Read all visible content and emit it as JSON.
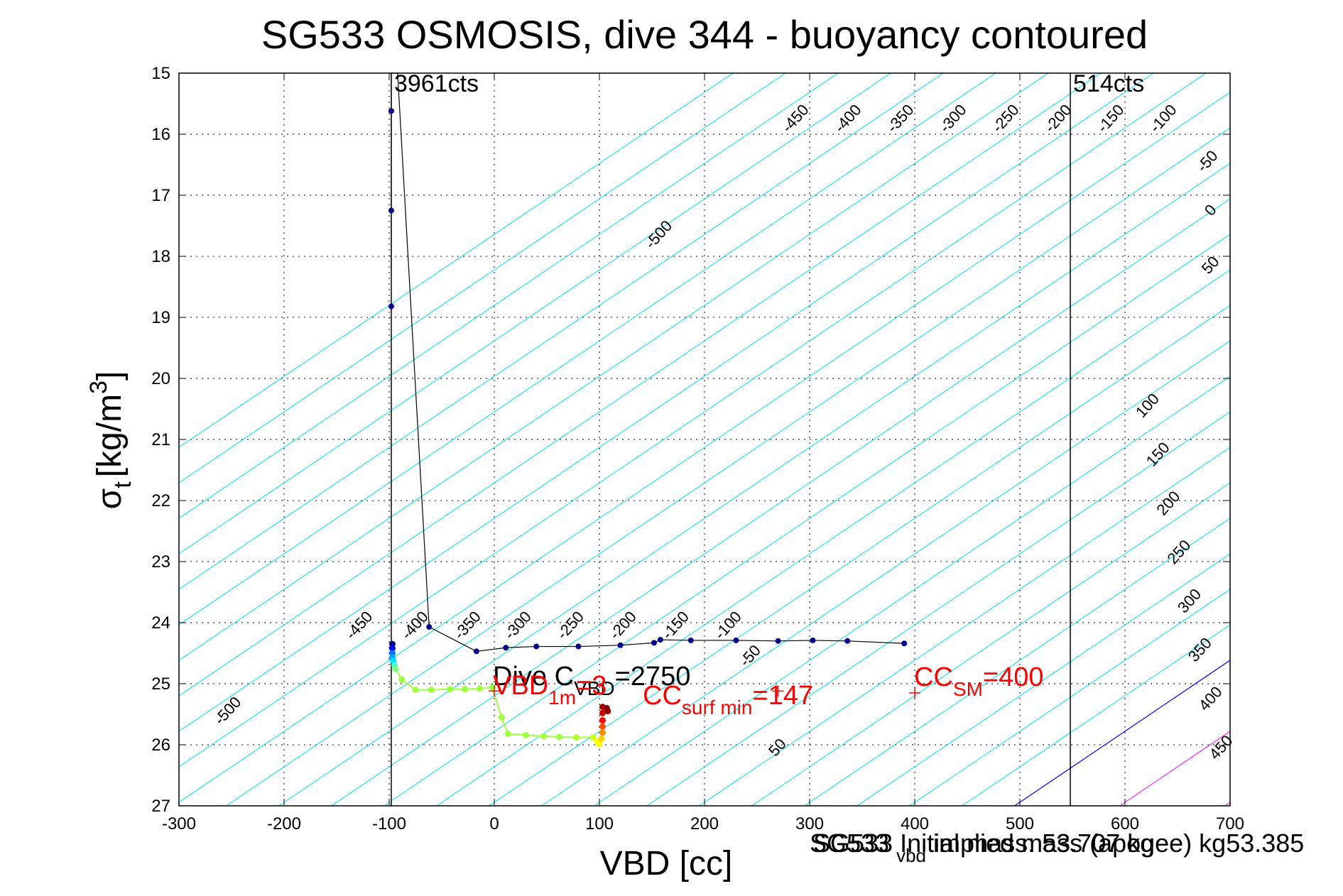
{
  "chart_data": {
    "type": "scatter",
    "title": "SG533 OSMOSIS, dive 344 - buoyancy contoured",
    "xlabel": "VBD [cc]",
    "ylabel": "σ_t [kg/m^3]",
    "ylabel_main": "σ",
    "ylabel_sub": "t",
    "ylabel_unit": "[kg/m",
    "ylabel_sup": "3",
    "ylabel_close": "]",
    "xlim": [
      -300,
      700
    ],
    "ylim": [
      15,
      27
    ],
    "y_reversed": true,
    "grid": true,
    "xticks": [
      -300,
      -200,
      -100,
      0,
      100,
      200,
      300,
      400,
      500,
      600,
      700
    ],
    "yticks": [
      15,
      16,
      17,
      18,
      19,
      20,
      21,
      22,
      23,
      24,
      25,
      26,
      27
    ],
    "vlines": [
      {
        "x": -98,
        "label": "3961cts",
        "color": "#000000"
      },
      {
        "x": 548,
        "label": "514cts",
        "color": "#000000"
      }
    ],
    "contours": {
      "slope_cc_per_sigma": 86,
      "zero_x_at_sigma_27": 495,
      "levels_cyan": [
        -1300,
        -1250,
        -1200,
        -1150,
        -1100,
        -1050,
        -1000,
        -950,
        -900,
        -850,
        -800,
        -750,
        -700,
        -650,
        -600,
        -550,
        -500,
        -450,
        -400,
        -350,
        -300,
        -250,
        -200,
        -150,
        -100,
        -50
      ],
      "level_zero": 0,
      "levels_magenta": [
        100,
        200
      ],
      "colors": {
        "negative": "#00e5ee",
        "zero": "#0000ff",
        "positive": "#ff00ff"
      }
    },
    "contour_labels": [
      {
        "text": "-450",
        "x": 290,
        "y": 15.8
      },
      {
        "text": "-400",
        "x": 340,
        "y": 15.8
      },
      {
        "text": "-350",
        "x": 390,
        "y": 15.8
      },
      {
        "text": "-300",
        "x": 440,
        "y": 15.8
      },
      {
        "text": "-250",
        "x": 490,
        "y": 15.8
      },
      {
        "text": "-200",
        "x": 540,
        "y": 15.8
      },
      {
        "text": "-150",
        "x": 590,
        "y": 15.8
      },
      {
        "text": "-100",
        "x": 640,
        "y": 15.8
      },
      {
        "text": "-50",
        "x": 682,
        "y": 16.5
      },
      {
        "text": "0",
        "x": 685,
        "y": 17.3
      },
      {
        "text": "50",
        "x": 685,
        "y": 18.2
      },
      {
        "text": "-500",
        "x": 160,
        "y": 17.7
      },
      {
        "text": "100",
        "x": 625,
        "y": 20.5
      },
      {
        "text": "150",
        "x": 635,
        "y": 21.3
      },
      {
        "text": "200",
        "x": 645,
        "y": 22.1
      },
      {
        "text": "250",
        "x": 655,
        "y": 22.9
      },
      {
        "text": "300",
        "x": 665,
        "y": 23.7
      },
      {
        "text": "350",
        "x": 675,
        "y": 24.5
      },
      {
        "text": "400",
        "x": 685,
        "y": 25.3
      },
      {
        "text": "450",
        "x": 695,
        "y": 26.1
      },
      {
        "text": "-450",
        "x": -125,
        "y": 24.1
      },
      {
        "text": "-400",
        "x": -72,
        "y": 24.1
      },
      {
        "text": "-350",
        "x": -22,
        "y": 24.1
      },
      {
        "text": "-300",
        "x": 26,
        "y": 24.1
      },
      {
        "text": "-250",
        "x": 76,
        "y": 24.1
      },
      {
        "text": "-200",
        "x": 126,
        "y": 24.1
      },
      {
        "text": "-150",
        "x": 176,
        "y": 24.1
      },
      {
        "text": "-100",
        "x": 226,
        "y": 24.1
      },
      {
        "text": "-50",
        "x": 247,
        "y": 24.6
      },
      {
        "text": "-500",
        "x": -250,
        "y": 25.5
      },
      {
        "text": "50",
        "x": 273,
        "y": 26.1
      }
    ],
    "dive_series": {
      "name": "dive",
      "color": "#00008b",
      "points": [
        [
          -98,
          15.62
        ],
        [
          -98,
          17.25
        ],
        [
          -98,
          18.82
        ],
        [
          -62,
          24.07
        ],
        [
          -17,
          24.47
        ],
        [
          11,
          24.41
        ],
        [
          40,
          24.39
        ],
        [
          80,
          24.39
        ],
        [
          120,
          24.37
        ],
        [
          152,
          24.33
        ],
        [
          158,
          24.28
        ],
        [
          187,
          24.29
        ],
        [
          230,
          24.29
        ],
        [
          270,
          24.3
        ],
        [
          303,
          24.29
        ],
        [
          336,
          24.3
        ],
        [
          390,
          24.34
        ]
      ],
      "line": [
        [
          -98,
          18.2
        ],
        [
          -98,
          15.6
        ],
        [
          -98,
          15.0
        ],
        [
          -92,
          15.0
        ],
        [
          -62,
          24.07
        ],
        [
          -17,
          24.47
        ],
        [
          11,
          24.41
        ],
        [
          40,
          24.39
        ],
        [
          80,
          24.39
        ],
        [
          120,
          24.37
        ],
        [
          152,
          24.33
        ],
        [
          158,
          24.28
        ],
        [
          187,
          24.29
        ],
        [
          230,
          24.29
        ],
        [
          270,
          24.3
        ],
        [
          303,
          24.29
        ],
        [
          336,
          24.3
        ],
        [
          390,
          24.34
        ]
      ]
    },
    "climb_series": {
      "name": "climb",
      "points": [
        [
          -97,
          24.35,
          "#00008b"
        ],
        [
          -97,
          24.42,
          "#0000ff"
        ],
        [
          -97,
          24.5,
          "#0070ff"
        ],
        [
          -97,
          24.57,
          "#00aaff"
        ],
        [
          -96,
          24.63,
          "#00e0ff"
        ],
        [
          -95,
          24.7,
          "#40ffd0"
        ],
        [
          -94,
          24.76,
          "#80ff80"
        ],
        [
          -88,
          24.93,
          "#a0ff40"
        ],
        [
          -75,
          25.1,
          "#a0ff40"
        ],
        [
          -60,
          25.1,
          "#a0ff40"
        ],
        [
          -42,
          25.09,
          "#a0ff40"
        ],
        [
          -28,
          25.09,
          "#a0ff40"
        ],
        [
          -14,
          25.08,
          "#a0ff40"
        ],
        [
          -2,
          25.06,
          "#a0ff40"
        ],
        [
          7,
          25.55,
          "#a0ff40"
        ],
        [
          13,
          25.82,
          "#a0ff40"
        ],
        [
          30,
          25.84,
          "#a0ff40"
        ],
        [
          47,
          25.86,
          "#a0ff40"
        ],
        [
          62,
          25.87,
          "#a0ff40"
        ],
        [
          78,
          25.88,
          "#b0ff30"
        ],
        [
          94,
          25.88,
          "#d0ff20"
        ],
        [
          98,
          25.95,
          "#ffff00"
        ],
        [
          100,
          25.99,
          "#ffff00"
        ],
        [
          102,
          25.9,
          "#ffd000"
        ],
        [
          103,
          25.8,
          "#ff9000"
        ],
        [
          103,
          25.7,
          "#ff5000"
        ],
        [
          103,
          25.6,
          "#ff0000"
        ],
        [
          103,
          25.48,
          "#d00000"
        ],
        [
          103,
          25.38,
          "#a00000"
        ],
        [
          107,
          25.4,
          "#8b0000"
        ],
        [
          108,
          25.45,
          "#8b0000"
        ]
      ],
      "line_color": "#a0ff40"
    },
    "annotations": [
      {
        "kind": "marker",
        "x": 0,
        "y": 25.12,
        "color": "#ff0000"
      },
      {
        "kind": "marker",
        "x": 270,
        "y": 25.12,
        "color": "#ff0000"
      },
      {
        "kind": "marker",
        "x": 400,
        "y": 25.15,
        "color": "#ff0000"
      }
    ],
    "label_dive_c": {
      "main": "Dive C",
      "sub": "VBD",
      "rest": "=2750",
      "color": "#000000"
    },
    "label_vbd1m": {
      "main": "VBD",
      "sub": "1m",
      "rest": "=3",
      "color": "#ff0000"
    },
    "label_cc_surf": {
      "main": "CC",
      "sub": "surf min",
      "rest": "=147",
      "color": "#ff0000"
    },
    "label_cc_sm": {
      "main": "CC",
      "sub": "SM",
      "rest": "=400",
      "color": "#ff0000"
    },
    "label_mass_1": {
      "main": "SG533 ",
      "sub": "vbd",
      "rest": " implied mass (apogee) kg53.385"
    },
    "label_mass_2": {
      "main": "SG533 Initial mass: 53.707 kg"
    }
  }
}
